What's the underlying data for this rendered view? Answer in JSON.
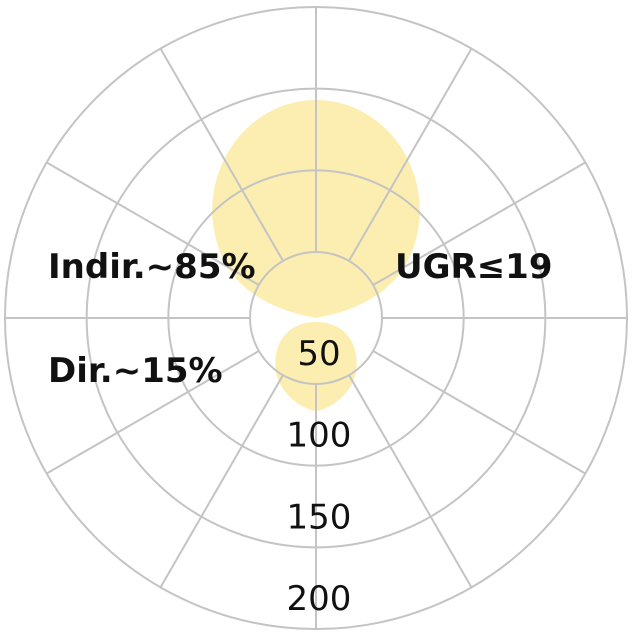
{
  "chart_data": {
    "type": "polar",
    "radial_ticks": [
      "50",
      "100",
      "150",
      "200"
    ],
    "radial_values": [
      50,
      100,
      150,
      200
    ],
    "angular_step_deg": 30,
    "grid": true,
    "annotations": {
      "indirect": "Indir.~85%",
      "direct": "Dir.~15%",
      "ugr": "UGR≤19"
    },
    "colors": {
      "distribution": "#fbeeb0",
      "grid": "#c4c4c4",
      "text": "#111111"
    }
  }
}
